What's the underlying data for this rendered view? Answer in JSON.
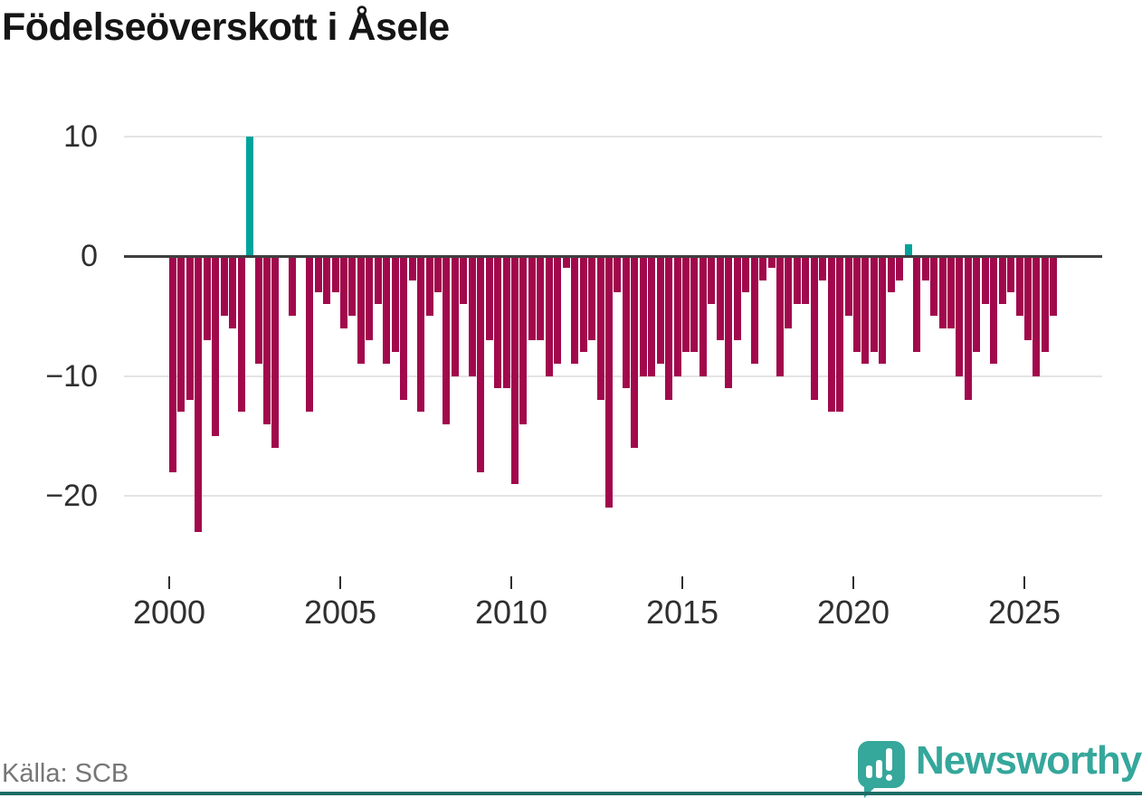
{
  "title": "Födelseöverskott i Åsele",
  "source": "Källa: SCB",
  "branding": {
    "wordmark": "Newsworthy",
    "icon": "bar-chart-speech-bubble-icon",
    "brand_color": "#35a79b",
    "border_color": "#1d6e66"
  },
  "chart_data": {
    "type": "bar",
    "title": "Födelseöverskott i Åsele",
    "xlabel": "",
    "ylabel": "",
    "frequency": "quarterly",
    "start_period": "2000-Q1",
    "end_period": "2025-Q4",
    "x_tick_labels": [
      2000,
      2005,
      2010,
      2015,
      2020,
      2025
    ],
    "y_ticks": [
      10,
      0,
      -10,
      -20
    ],
    "ylim": [
      -24,
      11
    ],
    "grid": "horizontal",
    "legend": "none",
    "positive_color": "#00a39b",
    "negative_color": "#a1094c",
    "series": [
      {
        "name": "Födelseöverskott",
        "values": [
          -18,
          -13,
          -12,
          -23,
          -7,
          -15,
          -5,
          -6,
          -13,
          10,
          -9,
          -14,
          -16,
          0,
          -5,
          0,
          -13,
          -3,
          -4,
          -3,
          -6,
          -5,
          -9,
          -7,
          -4,
          -9,
          -8,
          -12,
          -2,
          -13,
          -5,
          -3,
          -14,
          -10,
          -4,
          -10,
          -18,
          -7,
          -11,
          -11,
          -19,
          -14,
          -7,
          -7,
          -10,
          -9,
          -1,
          -9,
          -8,
          -7,
          -12,
          -21,
          -3,
          -11,
          -16,
          -10,
          -10,
          -9,
          -12,
          -10,
          -8,
          -8,
          -10,
          -4,
          -7,
          -11,
          -7,
          -3,
          -9,
          -2,
          -1,
          -10,
          -6,
          -4,
          -4,
          -12,
          -2,
          -13,
          -13,
          -5,
          -8,
          -9,
          -8,
          -9,
          -3,
          -2,
          1,
          -8,
          -2,
          -5,
          -6,
          -6,
          -10,
          -12,
          -8,
          -4,
          -9,
          -4,
          -3,
          -5,
          -7,
          -10,
          -8,
          -5
        ]
      }
    ]
  }
}
